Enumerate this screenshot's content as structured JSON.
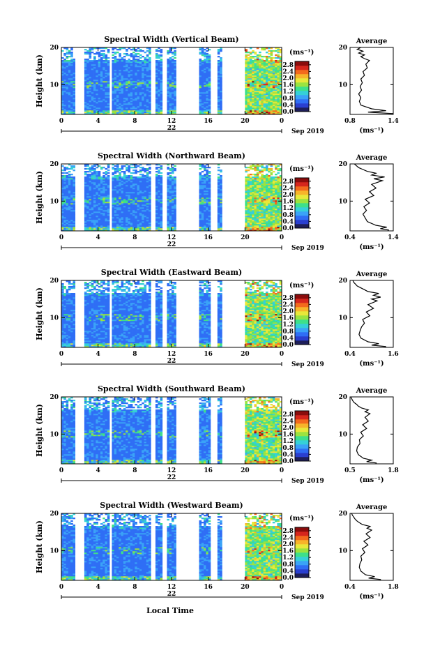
{
  "colors": {
    "colormap": [
      "#1e1e5a",
      "#2a3fd0",
      "#2f6ef5",
      "#3aa3f7",
      "#35d0d8",
      "#3ee08a",
      "#9be340",
      "#e8e83a",
      "#f7b42a",
      "#f36a1d",
      "#d6261d",
      "#8a0c0c"
    ],
    "gap": "#ffffff",
    "axis": "#000000",
    "profile": "#000000"
  },
  "footer": {
    "xlabel": "Local Time"
  },
  "chart_data": [
    {
      "type": "heatmap",
      "title": "Spectral Width (Vertical Beam)",
      "ylabel": "Height (km)",
      "x_ticks": [
        "0",
        "4",
        "8",
        "12",
        "16",
        "20",
        "0"
      ],
      "x_range": [
        0,
        24
      ],
      "y_range": [
        2,
        20
      ],
      "y_ticks": [
        "20",
        "10"
      ],
      "date_day": "22",
      "date_label": "Sep 2019",
      "colorbar": {
        "unit": "(ms⁻¹)",
        "ticks": [
          "2.8",
          "2.4",
          "2.0",
          "1.6",
          "1.2",
          "0.8",
          "0.4",
          "0.0"
        ],
        "range": [
          0.0,
          3.0
        ]
      },
      "average": {
        "title": "Average",
        "x_ticks": [
          "0.8",
          "1.4"
        ],
        "x_range": [
          0.8,
          1.4
        ],
        "xlabel": "(ms⁻¹)",
        "y_ticks": [
          "20",
          "10"
        ],
        "y_range": [
          2,
          20
        ],
        "profile": [
          [
            1.4,
            2.2
          ],
          [
            1.05,
            2.6
          ],
          [
            1.3,
            3.0
          ],
          [
            1.1,
            3.5
          ],
          [
            0.95,
            4.5
          ],
          [
            0.93,
            5.5
          ],
          [
            0.95,
            6.5
          ],
          [
            0.92,
            7.5
          ],
          [
            0.96,
            8.5
          ],
          [
            0.94,
            9.5
          ],
          [
            0.97,
            10.5
          ],
          [
            0.95,
            11.5
          ],
          [
            1.0,
            12.5
          ],
          [
            0.98,
            13.5
          ],
          [
            1.04,
            14.5
          ],
          [
            1.02,
            15.5
          ],
          [
            1.07,
            16.5
          ],
          [
            1.0,
            17.0
          ],
          [
            0.95,
            17.5
          ],
          [
            1.0,
            18.0
          ],
          [
            0.92,
            18.5
          ],
          [
            0.98,
            19.0
          ],
          [
            0.9,
            19.5
          ],
          [
            0.95,
            20.0
          ]
        ]
      }
    },
    {
      "type": "heatmap",
      "title": "Spectral Width (Northward Beam)",
      "ylabel": "Height (km)",
      "x_ticks": [
        "0",
        "4",
        "8",
        "12",
        "16",
        "20",
        "0"
      ],
      "x_range": [
        0,
        24
      ],
      "y_range": [
        2,
        20
      ],
      "y_ticks": [
        "20",
        "10"
      ],
      "date_day": "22",
      "date_label": "Sep 2019",
      "colorbar": {
        "unit": "(ms⁻¹)",
        "ticks": [
          "2.8",
          "2.4",
          "2.0",
          "1.6",
          "1.2",
          "0.8",
          "0.4",
          "0.0"
        ],
        "range": [
          0.0,
          3.0
        ]
      },
      "average": {
        "title": "Average",
        "x_ticks": [
          "0.4",
          "1.4"
        ],
        "x_range": [
          0.4,
          1.4
        ],
        "xlabel": "(ms⁻¹)",
        "y_ticks": [
          "20",
          "10"
        ],
        "y_range": [
          2,
          20
        ],
        "profile": [
          [
            1.3,
            2.2
          ],
          [
            1.1,
            2.6
          ],
          [
            1.25,
            3.0
          ],
          [
            1.0,
            3.5
          ],
          [
            0.8,
            4.5
          ],
          [
            0.75,
            5.5
          ],
          [
            0.7,
            6.5
          ],
          [
            0.78,
            7.5
          ],
          [
            0.72,
            8.5
          ],
          [
            0.85,
            9.5
          ],
          [
            0.75,
            10.5
          ],
          [
            0.95,
            11.5
          ],
          [
            0.85,
            12.5
          ],
          [
            1.0,
            13.5
          ],
          [
            0.9,
            14.5
          ],
          [
            1.15,
            15.5
          ],
          [
            0.95,
            16.0
          ],
          [
            1.2,
            16.5
          ],
          [
            0.9,
            17.0
          ],
          [
            1.0,
            17.5
          ],
          [
            0.8,
            18.0
          ],
          [
            0.7,
            18.5
          ],
          [
            0.6,
            19.0
          ],
          [
            0.55,
            19.5
          ],
          [
            0.5,
            20.0
          ]
        ]
      }
    },
    {
      "type": "heatmap",
      "title": "Spectral Width (Eastward Beam)",
      "ylabel": "Height (km)",
      "x_ticks": [
        "0",
        "4",
        "8",
        "12",
        "16",
        "20",
        "0"
      ],
      "x_range": [
        0,
        24
      ],
      "y_range": [
        2,
        20
      ],
      "y_ticks": [
        "20",
        "10"
      ],
      "date_day": "22",
      "date_label": "Sep 2019",
      "colorbar": {
        "unit": "(ms⁻¹)",
        "ticks": [
          "2.8",
          "2.4",
          "2.0",
          "1.6",
          "1.2",
          "0.8",
          "0.4",
          "0.0"
        ],
        "range": [
          0.0,
          3.0
        ]
      },
      "average": {
        "title": "Average",
        "x_ticks": [
          "0.4",
          "1.6"
        ],
        "x_range": [
          0.4,
          1.6
        ],
        "xlabel": "(ms⁻¹)",
        "y_ticks": [
          "20",
          "10"
        ],
        "y_range": [
          2,
          20
        ],
        "profile": [
          [
            1.4,
            2.2
          ],
          [
            1.0,
            2.6
          ],
          [
            1.2,
            3.0
          ],
          [
            0.9,
            3.5
          ],
          [
            0.7,
            4.5
          ],
          [
            0.65,
            5.5
          ],
          [
            0.68,
            6.5
          ],
          [
            0.72,
            7.5
          ],
          [
            0.8,
            8.5
          ],
          [
            0.75,
            9.5
          ],
          [
            0.95,
            10.5
          ],
          [
            0.85,
            11.5
          ],
          [
            1.05,
            12.5
          ],
          [
            0.9,
            13.5
          ],
          [
            1.15,
            14.5
          ],
          [
            1.0,
            15.0
          ],
          [
            1.25,
            15.5
          ],
          [
            1.05,
            16.0
          ],
          [
            1.2,
            16.5
          ],
          [
            0.9,
            17.0
          ],
          [
            0.8,
            17.5
          ],
          [
            0.7,
            18.0
          ],
          [
            0.6,
            18.5
          ],
          [
            0.55,
            19.0
          ],
          [
            0.5,
            19.5
          ],
          [
            0.48,
            20.0
          ]
        ]
      }
    },
    {
      "type": "heatmap",
      "title": "Spectral Width (Southward Beam)",
      "ylabel": "Height (km)",
      "x_ticks": [
        "0",
        "4",
        "8",
        "12",
        "16",
        "20",
        "0"
      ],
      "x_range": [
        0,
        24
      ],
      "y_range": [
        2,
        20
      ],
      "y_ticks": [
        "20",
        "10"
      ],
      "date_day": "22",
      "date_label": "Sep 2019",
      "colorbar": {
        "unit": "(ms⁻¹)",
        "ticks": [
          "2.8",
          "2.4",
          "2.0",
          "1.6",
          "1.2",
          "0.8",
          "0.4",
          "0.0"
        ],
        "range": [
          0.0,
          3.0
        ]
      },
      "average": {
        "title": "Average",
        "x_ticks": [
          "0.5",
          "1.8"
        ],
        "x_range": [
          0.5,
          1.8
        ],
        "xlabel": "(ms⁻¹)",
        "y_ticks": [
          "20",
          "10"
        ],
        "y_range": [
          2,
          20
        ],
        "profile": [
          [
            1.3,
            2.2
          ],
          [
            1.0,
            2.6
          ],
          [
            1.15,
            3.0
          ],
          [
            0.9,
            3.5
          ],
          [
            0.75,
            4.5
          ],
          [
            0.7,
            5.5
          ],
          [
            0.72,
            6.5
          ],
          [
            0.8,
            7.5
          ],
          [
            0.78,
            8.5
          ],
          [
            0.9,
            9.5
          ],
          [
            0.82,
            10.5
          ],
          [
            1.0,
            11.5
          ],
          [
            0.88,
            12.5
          ],
          [
            1.05,
            13.5
          ],
          [
            0.95,
            14.5
          ],
          [
            1.1,
            15.5
          ],
          [
            0.95,
            16.0
          ],
          [
            1.05,
            16.5
          ],
          [
            0.85,
            17.0
          ],
          [
            0.75,
            17.5
          ],
          [
            0.7,
            18.0
          ],
          [
            0.62,
            18.5
          ],
          [
            0.58,
            19.0
          ],
          [
            0.55,
            19.5
          ],
          [
            0.52,
            20.0
          ]
        ]
      }
    },
    {
      "type": "heatmap",
      "title": "Spectral Width (Westward Beam)",
      "ylabel": "Height (km)",
      "x_ticks": [
        "0",
        "4",
        "8",
        "12",
        "16",
        "20",
        "0"
      ],
      "x_range": [
        0,
        24
      ],
      "y_range": [
        2,
        20
      ],
      "y_ticks": [
        "20",
        "10"
      ],
      "date_day": "22",
      "date_label": "Sep 2019",
      "colorbar": {
        "unit": "(ms⁻¹)",
        "ticks": [
          "2.8",
          "2.4",
          "2.0",
          "1.6",
          "1.2",
          "0.8",
          "0.4",
          "0.0"
        ],
        "range": [
          0.0,
          3.0
        ]
      },
      "average": {
        "title": "Average",
        "x_ticks": [
          "0.4",
          "1.8"
        ],
        "x_range": [
          0.4,
          1.8
        ],
        "xlabel": "(ms⁻¹)",
        "y_ticks": [
          "20",
          "10"
        ],
        "y_range": [
          2,
          20
        ],
        "profile": [
          [
            1.4,
            2.2
          ],
          [
            1.0,
            2.6
          ],
          [
            1.2,
            3.0
          ],
          [
            0.9,
            3.5
          ],
          [
            0.75,
            4.5
          ],
          [
            0.7,
            5.5
          ],
          [
            0.72,
            6.5
          ],
          [
            0.78,
            7.5
          ],
          [
            0.75,
            8.5
          ],
          [
            0.88,
            9.5
          ],
          [
            0.8,
            10.5
          ],
          [
            0.98,
            11.5
          ],
          [
            0.85,
            12.5
          ],
          [
            1.05,
            13.5
          ],
          [
            0.92,
            14.5
          ],
          [
            1.1,
            15.5
          ],
          [
            0.95,
            16.0
          ],
          [
            1.05,
            16.5
          ],
          [
            0.8,
            17.0
          ],
          [
            0.7,
            17.5
          ],
          [
            0.62,
            18.0
          ],
          [
            0.56,
            18.5
          ],
          [
            0.52,
            19.0
          ],
          [
            0.48,
            19.5
          ],
          [
            0.45,
            20.0
          ]
        ]
      }
    }
  ]
}
